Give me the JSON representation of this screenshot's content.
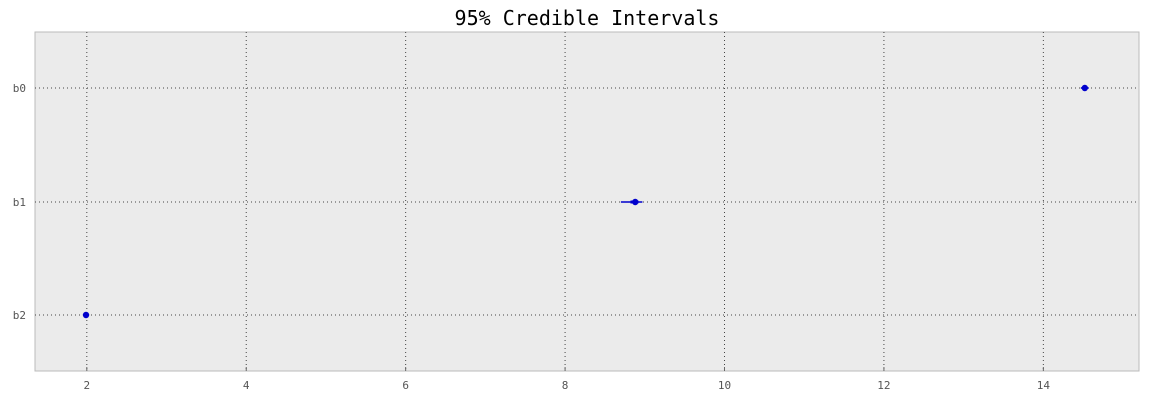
{
  "chart_data": {
    "type": "scatter",
    "title": "95% Credible Intervals",
    "xlabel": "",
    "ylabel": "",
    "xlim": [
      1.35,
      15.2
    ],
    "x_ticks": [
      "2",
      "4",
      "6",
      "8",
      "10",
      "12",
      "14"
    ],
    "x_tick_values": [
      2,
      4,
      6,
      8,
      10,
      12,
      14
    ],
    "categories": [
      "b0",
      "b1",
      "b2"
    ],
    "series": [
      {
        "points": [
          {
            "label": "b0",
            "mean": 14.52,
            "lower_95": 14.47,
            "upper_95": 14.57,
            "lower_50": 14.5,
            "upper_50": 14.54
          },
          {
            "label": "b1",
            "mean": 8.88,
            "lower_95": 8.7,
            "upper_95": 8.97,
            "lower_50": 8.82,
            "upper_50": 8.92
          },
          {
            "label": "b2",
            "mean": 1.99,
            "lower_95": 1.98,
            "upper_95": 2.01,
            "lower_50": 1.985,
            "upper_50": 2.0
          }
        ]
      }
    ],
    "grid": true,
    "colors": {
      "plot_background": "#ebebeb",
      "marker": "#0000cc",
      "grid": "#444444",
      "frame": "#bbbbbb"
    }
  }
}
